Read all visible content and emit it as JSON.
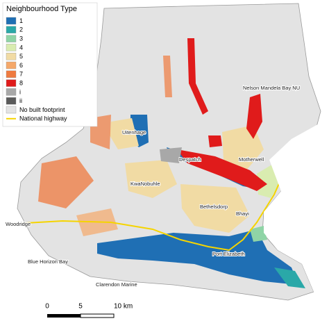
{
  "legend": {
    "title": "Neighbourhood Type",
    "items": [
      {
        "label": "1",
        "color": "#1f6fb4",
        "swatch": "box"
      },
      {
        "label": "2",
        "color": "#2aa8a8",
        "swatch": "box"
      },
      {
        "label": "3",
        "color": "#8fd4a6",
        "swatch": "box"
      },
      {
        "label": "4",
        "color": "#d9ecb0",
        "swatch": "box"
      },
      {
        "label": "5",
        "color": "#f1dba4",
        "swatch": "box"
      },
      {
        "label": "6",
        "color": "#f5a86a",
        "swatch": "box"
      },
      {
        "label": "7",
        "color": "#ef7a3f",
        "swatch": "box"
      },
      {
        "label": "8",
        "color": "#e01b1b",
        "swatch": "box"
      },
      {
        "label": "i",
        "color": "#a8a8a8",
        "swatch": "box"
      },
      {
        "label": "ii",
        "color": "#5a5a5a",
        "swatch": "box"
      },
      {
        "label": "No built footprint",
        "color": "#e3e3e3",
        "swatch": "box"
      },
      {
        "label": "National highway",
        "color": "#f5d400",
        "swatch": "line"
      }
    ]
  },
  "places": [
    "Nelson Mandela Bay NU",
    "Uitenhage",
    "Despatch",
    "Motherwell",
    "KwaNobuhle",
    "Bethelsdorp",
    "Bhayi",
    "Woodridge",
    "Port Elizabeth",
    "Blue Horizon Bay",
    "Clarendon Marine"
  ],
  "scale_bar": {
    "labels": [
      "0",
      "5",
      "10 km"
    ]
  }
}
